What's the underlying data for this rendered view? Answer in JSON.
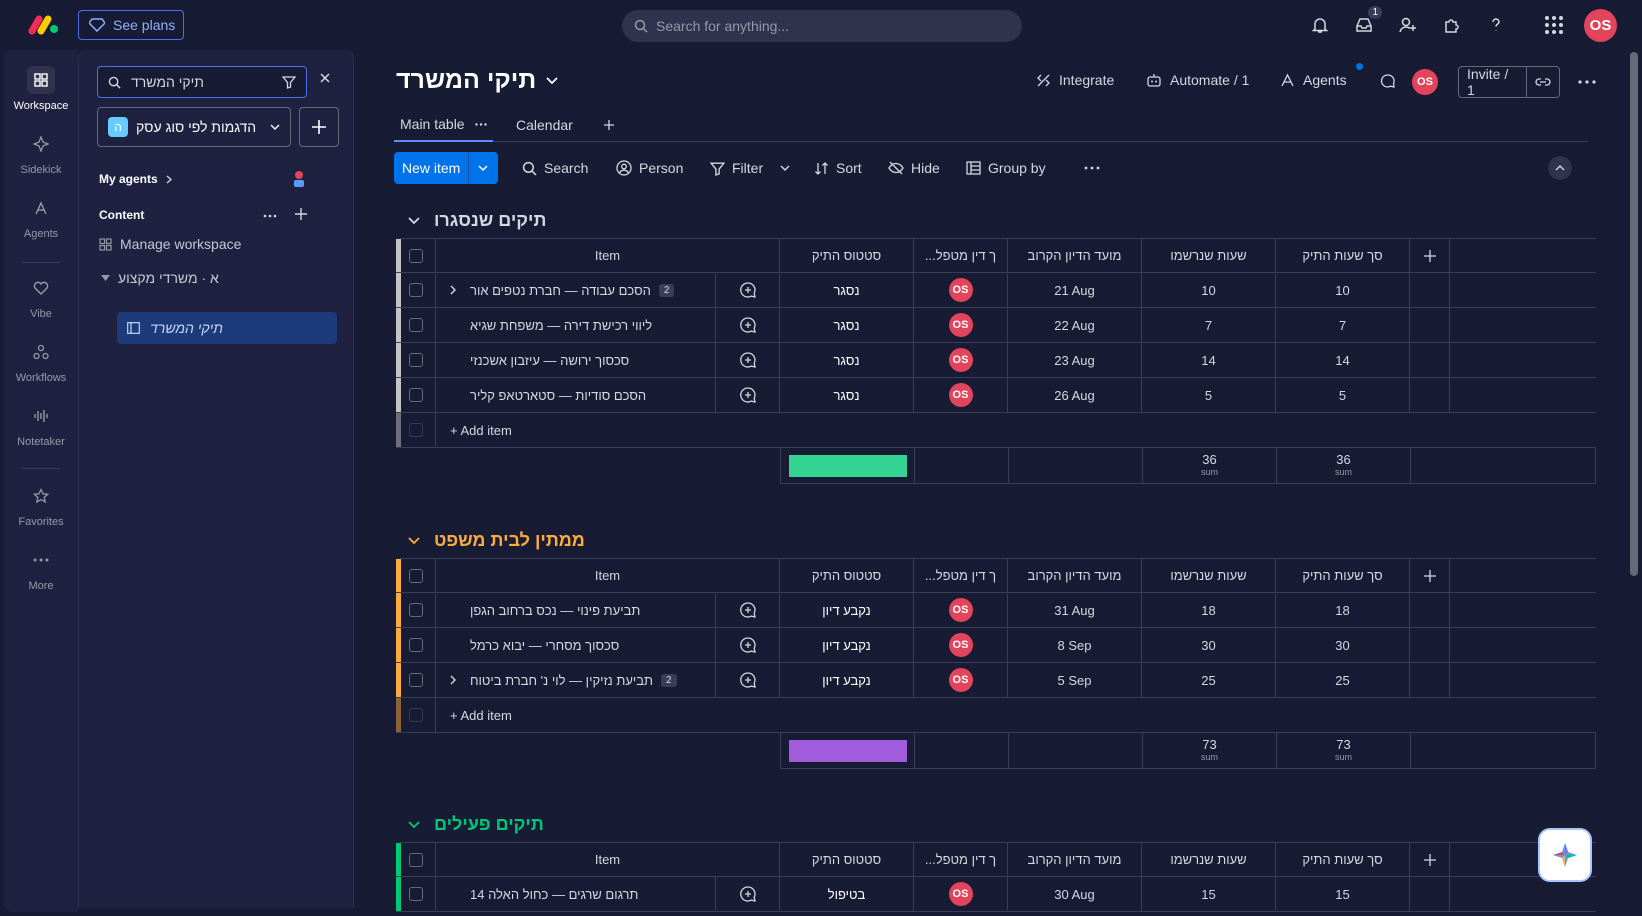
{
  "top": {
    "see_plans": "See plans",
    "search_placeholder": "Search for anything...",
    "inbox_badge": "1",
    "avatar": "OS"
  },
  "rail": [
    {
      "label": "Workspace",
      "icon": "grid-icon"
    },
    {
      "label": "Sidekick",
      "icon": "sparkle-icon"
    },
    {
      "label": "Agents",
      "icon": "agents-icon"
    },
    {
      "label": "Vibe",
      "icon": "heart-icon"
    },
    {
      "label": "Workflows",
      "icon": "workflow-icon"
    },
    {
      "label": "Notetaker",
      "icon": "waveform-icon"
    },
    {
      "label": "Favorites",
      "icon": "star-icon"
    },
    {
      "label": "More",
      "icon": "more-icon"
    }
  ],
  "sidebar": {
    "search_value": "תיקי המשרד",
    "workspace_letter": "ה",
    "workspace_name": "הדגמות לפי סוג עסק",
    "my_agents": "My agents",
    "content": "Content",
    "manage": "Manage workspace",
    "folder": "א · משרדי מקצוע",
    "active_board": "תיקי המשרד"
  },
  "board": {
    "title": "תיקי המשרד",
    "integrate": "Integrate",
    "automate": "Automate / 1",
    "agents": "Agents",
    "avatar": "OS",
    "invite": "Invite / 1",
    "tabs": {
      "main": "Main table",
      "calendar": "Calendar"
    },
    "toolbar": {
      "new_item": "New item",
      "search": "Search",
      "person": "Person",
      "filter": "Filter",
      "sort": "Sort",
      "hide": "Hide",
      "group_by": "Group by"
    }
  },
  "columns": {
    "item": "Item",
    "status": "סטטוס התיק",
    "lawyer": "...ך דין מטפל",
    "hearing": "מועד הדיון הקרוב",
    "logged": "שעות שנרשמו",
    "total": "סך שעות התיק",
    "add_item": "+ Add item",
    "sum_label": "sum"
  },
  "groups": [
    {
      "title": "תיקים שנסגרו",
      "color": "#c4c4c4",
      "title_color": "#d5d8df",
      "status_color": "#33d391",
      "rows": [
        {
          "name": "הסכם עבודה — חברת נטפים אור",
          "sub": "2",
          "status": "נסגר",
          "person": "OS",
          "date": "21 Aug",
          "logged": "10",
          "total": "10"
        },
        {
          "name": "ליווי רכישת דירה — משפחת שגיא",
          "sub": "",
          "status": "נסגר",
          "person": "OS",
          "date": "22 Aug",
          "logged": "7",
          "total": "7"
        },
        {
          "name": "סכסוך ירושה — עיזבון אשכנזי",
          "sub": "",
          "status": "נסגר",
          "person": "OS",
          "date": "23 Aug",
          "logged": "14",
          "total": "14"
        },
        {
          "name": "הסכם סודיות — סטארטאפ קליר",
          "sub": "",
          "status": "נסגר",
          "person": "OS",
          "date": "26 Aug",
          "logged": "5",
          "total": "5"
        }
      ],
      "sum_logged": "36",
      "sum_total": "36"
    },
    {
      "title": "ממתין לבית משפט",
      "color": "#fdab3d",
      "title_color": "#fdab3d",
      "status_color": "#a25ddc",
      "rows": [
        {
          "name": "תביעת פינוי — נכס ברחוב הגפן",
          "sub": "",
          "status": "נקבע דיון",
          "person": "OS",
          "date": "31 Aug",
          "logged": "18",
          "total": "18"
        },
        {
          "name": "סכסוך מסחרי — יבוא כרמל",
          "sub": "",
          "status": "נקבע דיון",
          "person": "OS",
          "date": "8 Sep",
          "logged": "30",
          "total": "30"
        },
        {
          "name": "תביעת נזיקין — לוי נ' חברת ביטוח",
          "sub": "2",
          "status": "נקבע דיון",
          "person": "OS",
          "date": "5 Sep",
          "logged": "25",
          "total": "25"
        }
      ],
      "sum_logged": "73",
      "sum_total": "73"
    },
    {
      "title": "תיקים פעילים",
      "color": "#00c875",
      "title_color": "#00c875",
      "status_color": "#fdab3d",
      "rows": [
        {
          "name": "תרגום שרגים — כחול האלה 14",
          "sub": "",
          "status": "בטיפול",
          "person": "OS",
          "date": "30 Aug",
          "logged": "15",
          "total": "15"
        }
      ]
    }
  ]
}
